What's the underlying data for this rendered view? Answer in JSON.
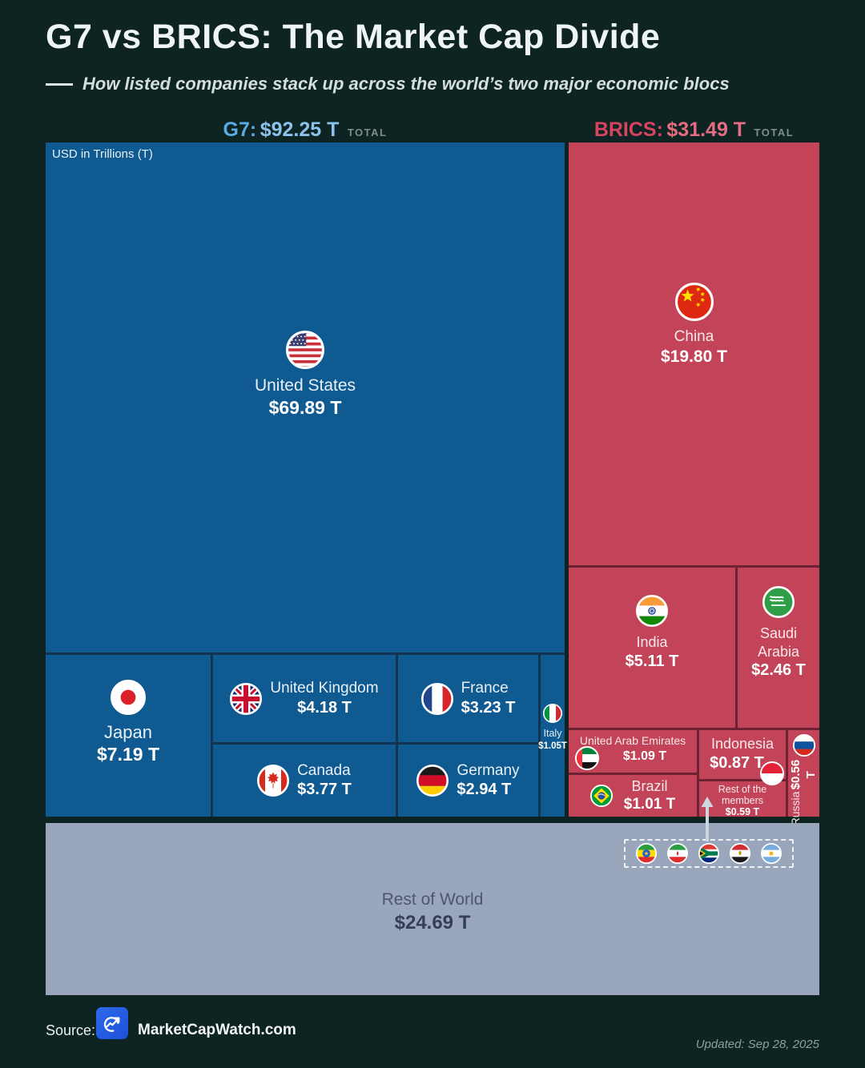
{
  "page": {
    "title": "G7 vs BRICS: The Market Cap Divide",
    "subtitle": "How listed companies stack up across the world’s two major economic blocs",
    "units_label": "USD in Trillions (T)",
    "source_label": "Source:",
    "source_name": "MarketCapWatch.com",
    "updated": "Updated: Sep 28, 2025"
  },
  "headers": {
    "g7": {
      "label": "G7:",
      "total": "$92.25 T",
      "suffix": "TOTAL"
    },
    "brics": {
      "label": "BRICS:",
      "total": "$31.49 T",
      "suffix": "TOTAL"
    }
  },
  "tiles": {
    "us": {
      "name": "United States",
      "value": "$69.89 T",
      "icon": "united-states-flag-icon"
    },
    "japan": {
      "name": "Japan",
      "value": "$7.19 T",
      "icon": "japan-flag-icon"
    },
    "uk": {
      "name": "United Kingdom",
      "value": "$4.18 T",
      "icon": "united-kingdom-flag-icon"
    },
    "canada": {
      "name": "Canada",
      "value": "$3.77 T",
      "icon": "canada-flag-icon"
    },
    "france": {
      "name": "France",
      "value": "$3.23 T",
      "icon": "france-flag-icon"
    },
    "germany": {
      "name": "Germany",
      "value": "$2.94 T",
      "icon": "germany-flag-icon"
    },
    "italy": {
      "name": "Italy",
      "value": "$1.05T",
      "icon": "italy-flag-icon"
    },
    "china": {
      "name": "China",
      "value": "$19.80 T",
      "icon": "china-flag-icon"
    },
    "india": {
      "name": "India",
      "value": "$5.11 T",
      "icon": "india-flag-icon"
    },
    "saudi": {
      "name": "Saudi Arabia",
      "value": "$2.46 T",
      "icon": "saudi-arabia-flag-icon"
    },
    "uae": {
      "name": "United Arab Emirates",
      "value": "$1.09 T",
      "icon": "uae-flag-icon"
    },
    "brazil": {
      "name": "Brazil",
      "value": "$1.01 T",
      "icon": "brazil-flag-icon"
    },
    "indonesia": {
      "name": "Indonesia",
      "value": "$0.87 T",
      "icon": "indonesia-flag-icon"
    },
    "rom": {
      "name_line1": "Rest of the",
      "name_line2": "members",
      "value": "$0.59 T",
      "member_flag_icons": [
        "ethiopia-flag-icon",
        "iran-flag-icon",
        "south-africa-flag-icon",
        "egypt-flag-icon",
        "argentina-flag-icon"
      ]
    },
    "russia": {
      "name": "Russia",
      "value": "$0.56 T",
      "icon": "russia-flag-icon"
    },
    "row": {
      "name": "Rest of World",
      "value": "$24.69 T"
    }
  },
  "colors": {
    "background": "#0e2422",
    "g7_tile": "#0e5a91",
    "brics_tile": "#c34458",
    "rest_of_world_band": "#9aa6bc",
    "g7_accent": "#57ace3",
    "brics_accent": "#d8435f",
    "total_suffix": "#7e8e8e",
    "source_logo": "#2563eb"
  },
  "chart_data": {
    "type": "treemap",
    "title": "G7 vs BRICS: The Market Cap Divide",
    "subtitle": "How listed companies stack up across the world’s two major economic blocs",
    "units": "USD in Trillions (T)",
    "groups": [
      {
        "name": "G7",
        "total": 92.25,
        "color": "#0e5a91",
        "members": [
          {
            "country": "United States",
            "value": 69.89
          },
          {
            "country": "Japan",
            "value": 7.19
          },
          {
            "country": "United Kingdom",
            "value": 4.18
          },
          {
            "country": "Canada",
            "value": 3.77
          },
          {
            "country": "France",
            "value": 3.23
          },
          {
            "country": "Germany",
            "value": 2.94
          },
          {
            "country": "Italy",
            "value": 1.05
          }
        ]
      },
      {
        "name": "BRICS",
        "total": 31.49,
        "color": "#c34458",
        "members": [
          {
            "country": "China",
            "value": 19.8
          },
          {
            "country": "India",
            "value": 5.11
          },
          {
            "country": "Saudi Arabia",
            "value": 2.46
          },
          {
            "country": "United Arab Emirates",
            "value": 1.09
          },
          {
            "country": "Brazil",
            "value": 1.01
          },
          {
            "country": "Indonesia",
            "value": 0.87
          },
          {
            "country": "Rest of the members",
            "value": 0.59
          },
          {
            "country": "Russia",
            "value": 0.56
          }
        ]
      },
      {
        "name": "Rest of World",
        "total": 24.69,
        "color": "#9aa6bc",
        "members": []
      }
    ],
    "legend_position": "none",
    "grid": false
  }
}
